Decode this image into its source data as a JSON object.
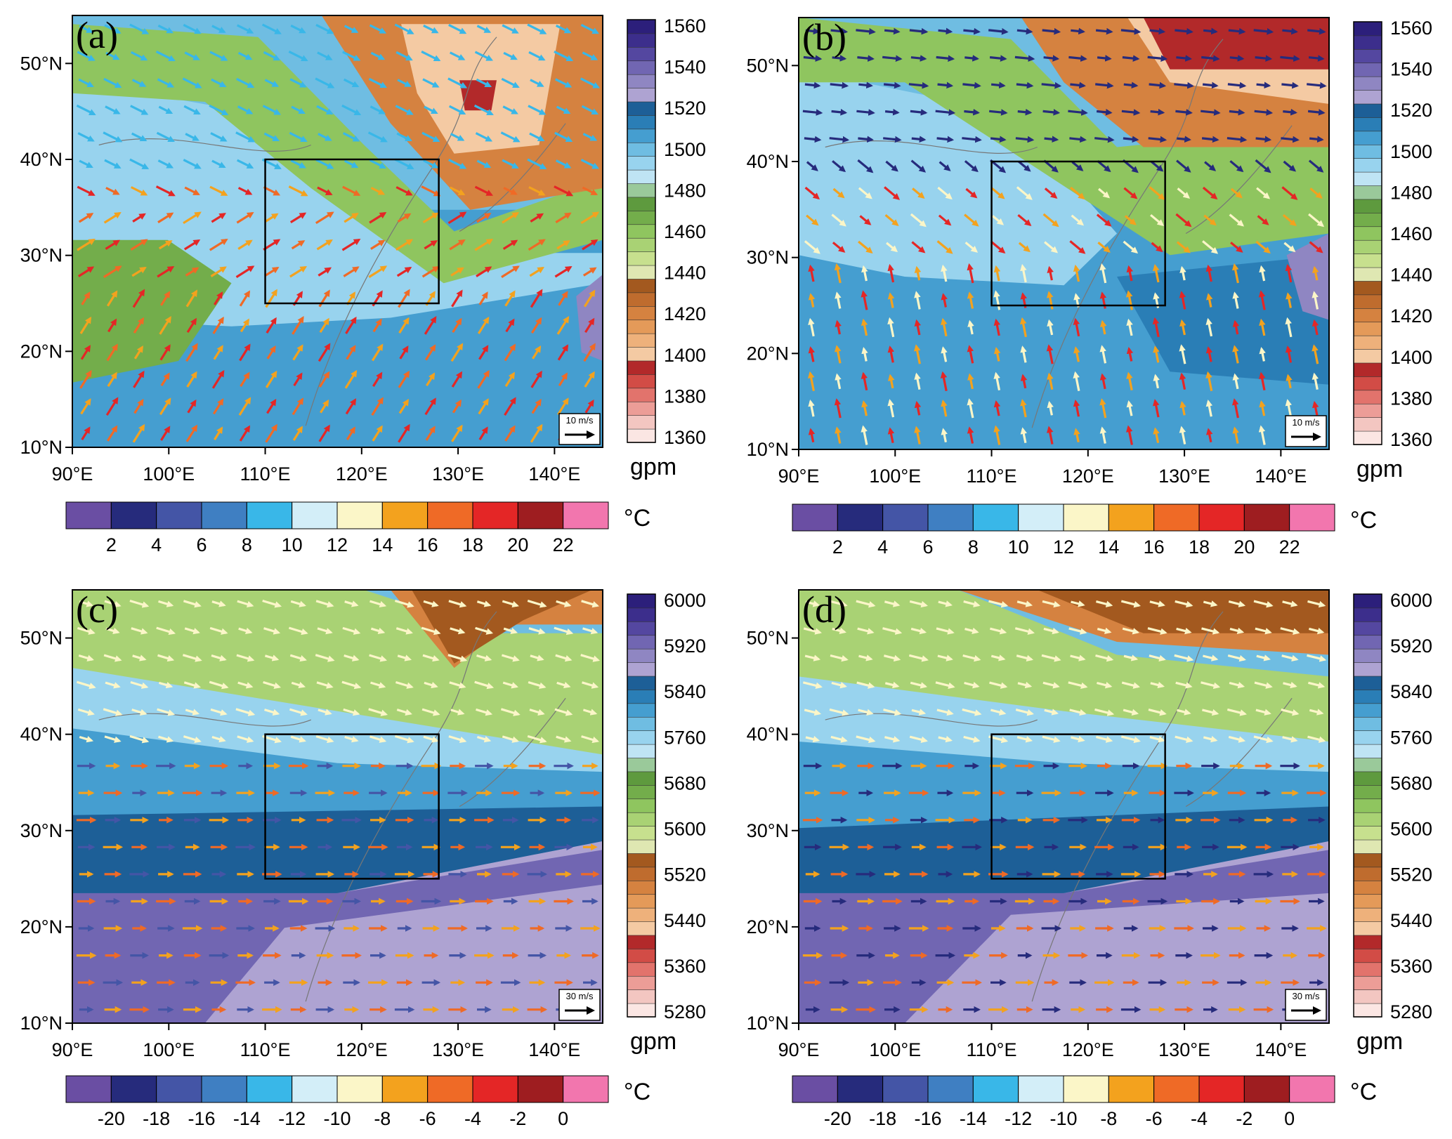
{
  "figure": {
    "lon_ticks": [
      "90°E",
      "100°E",
      "110°E",
      "120°E",
      "130°E",
      "140°E"
    ],
    "lat_ticks": [
      "10°N",
      "20°N",
      "30°N",
      "40°N",
      "50°N"
    ],
    "extent": {
      "lon": [
        90,
        145
      ],
      "lat": [
        10,
        55
      ]
    },
    "box_region": {
      "lon": [
        110,
        128
      ],
      "lat": [
        25,
        40
      ]
    },
    "temperature_palette": [
      "#6a4ea3",
      "#262b7c",
      "#4455a6",
      "#3f7fc2",
      "#39b7e8",
      "#d3eef8",
      "#fbf6c8",
      "#f3a21e",
      "#ef6a26",
      "#e42626",
      "#9e1d20",
      "#f276ae"
    ],
    "gph_palette": [
      "#fbe6e3",
      "#f3c6c1",
      "#ec9d97",
      "#e2736c",
      "#d24c46",
      "#b2292a",
      "#f4caa3",
      "#eeb17b",
      "#e49a59",
      "#d58240",
      "#bf6c2e",
      "#a3591f",
      "#dfe7b2",
      "#c7e08e",
      "#a9d274",
      "#8fc55f",
      "#73ad4b",
      "#5e9a3e",
      "#9ac99a",
      "#bfe4f4",
      "#98d3ee",
      "#6fbde2",
      "#459ed0",
      "#2a7eb6",
      "#1d5f97",
      "#aea3d2",
      "#8f86c2",
      "#7166b2",
      "#5447a0",
      "#3c2e8c",
      "#2c1f7b"
    ]
  },
  "panels": [
    {
      "label": "(a)",
      "unit": "gpm",
      "ref_vector": "10 m/s",
      "height_labels": [
        "1560",
        "1540",
        "1520",
        "1500",
        "1480",
        "1460",
        "1440",
        "1420",
        "1400",
        "1380",
        "1360"
      ],
      "temp_unit": "°C",
      "temp_labels": [
        "2",
        "4",
        "6",
        "8",
        "10",
        "12",
        "14",
        "16",
        "18",
        "20",
        "22"
      ]
    },
    {
      "label": "(b)",
      "unit": "gpm",
      "ref_vector": "10 m/s",
      "height_labels": [
        "1560",
        "1540",
        "1520",
        "1500",
        "1480",
        "1460",
        "1440",
        "1420",
        "1400",
        "1380",
        "1360"
      ],
      "temp_unit": "°C",
      "temp_labels": [
        "2",
        "4",
        "6",
        "8",
        "10",
        "12",
        "14",
        "16",
        "18",
        "20",
        "22"
      ]
    },
    {
      "label": "(c)",
      "unit": "gpm",
      "ref_vector": "30 m/s",
      "height_labels": [
        "6000",
        "5920",
        "5840",
        "5760",
        "5680",
        "5600",
        "5520",
        "5440",
        "5360",
        "5280"
      ],
      "temp_unit": "°C",
      "temp_labels": [
        "-20",
        "-18",
        "-16",
        "-14",
        "-12",
        "-10",
        "-8",
        "-6",
        "-4",
        "-2",
        "0"
      ]
    },
    {
      "label": "(d)",
      "unit": "gpm",
      "ref_vector": "30 m/s",
      "height_labels": [
        "6000",
        "5920",
        "5840",
        "5760",
        "5680",
        "5600",
        "5520",
        "5440",
        "5360",
        "5280"
      ],
      "temp_unit": "°C",
      "temp_labels": [
        "-20",
        "-18",
        "-16",
        "-14",
        "-12",
        "-10",
        "-8",
        "-6",
        "-4",
        "-2",
        "0"
      ]
    }
  ]
}
